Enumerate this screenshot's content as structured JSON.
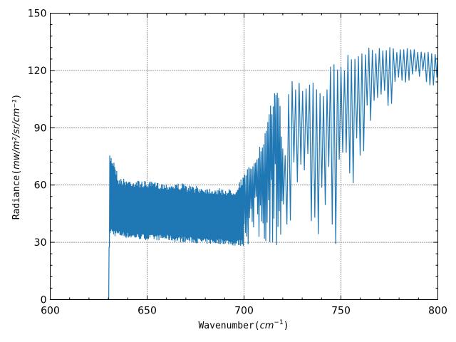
{
  "chart_data": {
    "type": "line",
    "title": "",
    "xlabel": "Wavenumber",
    "xlabel_unit_base": "cm",
    "xlabel_unit_exp": "−1",
    "ylabel": "Radiance",
    "ylabel_unit": "mw/m²/sr/cm⁻¹",
    "xlim": [
      600,
      800
    ],
    "ylim": [
      0,
      150
    ],
    "xticks": [
      600,
      650,
      700,
      750,
      800
    ],
    "yticks": [
      0,
      30,
      60,
      90,
      120,
      150
    ],
    "xtick_labels": [
      "600",
      "650",
      "700",
      "750",
      "800"
    ],
    "ytick_labels": [
      "0",
      "30",
      "60",
      "90",
      "120",
      "150"
    ],
    "grid": true,
    "legend": "none",
    "series": [
      {
        "color": "#1f77b4",
        "envelope_upper": {
          "x": [
            600,
            630,
            630.5,
            633,
            635,
            640,
            650,
            660,
            665,
            668,
            670,
            680,
            690,
            695,
            700,
            705,
            710,
            715,
            717,
            720,
            722,
            725,
            730,
            735,
            740,
            745,
            750,
            755,
            760,
            765,
            770,
            775,
            780,
            785,
            790,
            795,
            800
          ],
          "y": [
            0,
            0,
            77,
            73,
            64,
            63,
            62,
            61,
            61,
            61,
            60,
            59,
            58,
            58,
            66,
            75,
            85,
            110,
            120,
            75,
            112,
            120,
            118,
            122,
            115,
            125,
            130,
            131,
            133,
            134,
            133,
            133,
            132,
            132,
            130,
            130,
            130
          ]
        },
        "envelope_lower": {
          "x": [
            600,
            630,
            630.5,
            633,
            635,
            640,
            650,
            660,
            665,
            668,
            670,
            680,
            690,
            695,
            700,
            705,
            710,
            715,
            717,
            720,
            722,
            725,
            730,
            735,
            740,
            745,
            750,
            755,
            760,
            765,
            770,
            775,
            780,
            785,
            790,
            795,
            800
          ],
          "y": [
            0,
            0,
            34,
            33,
            33,
            32,
            31,
            31,
            30,
            30,
            30,
            29,
            29,
            28,
            28,
            28,
            28,
            28,
            28,
            27,
            27,
            27,
            27,
            26,
            26,
            27,
            30,
            40,
            65,
            90,
            95,
            100,
            110,
            115,
            112,
            110,
            110
          ]
        }
      }
    ]
  }
}
